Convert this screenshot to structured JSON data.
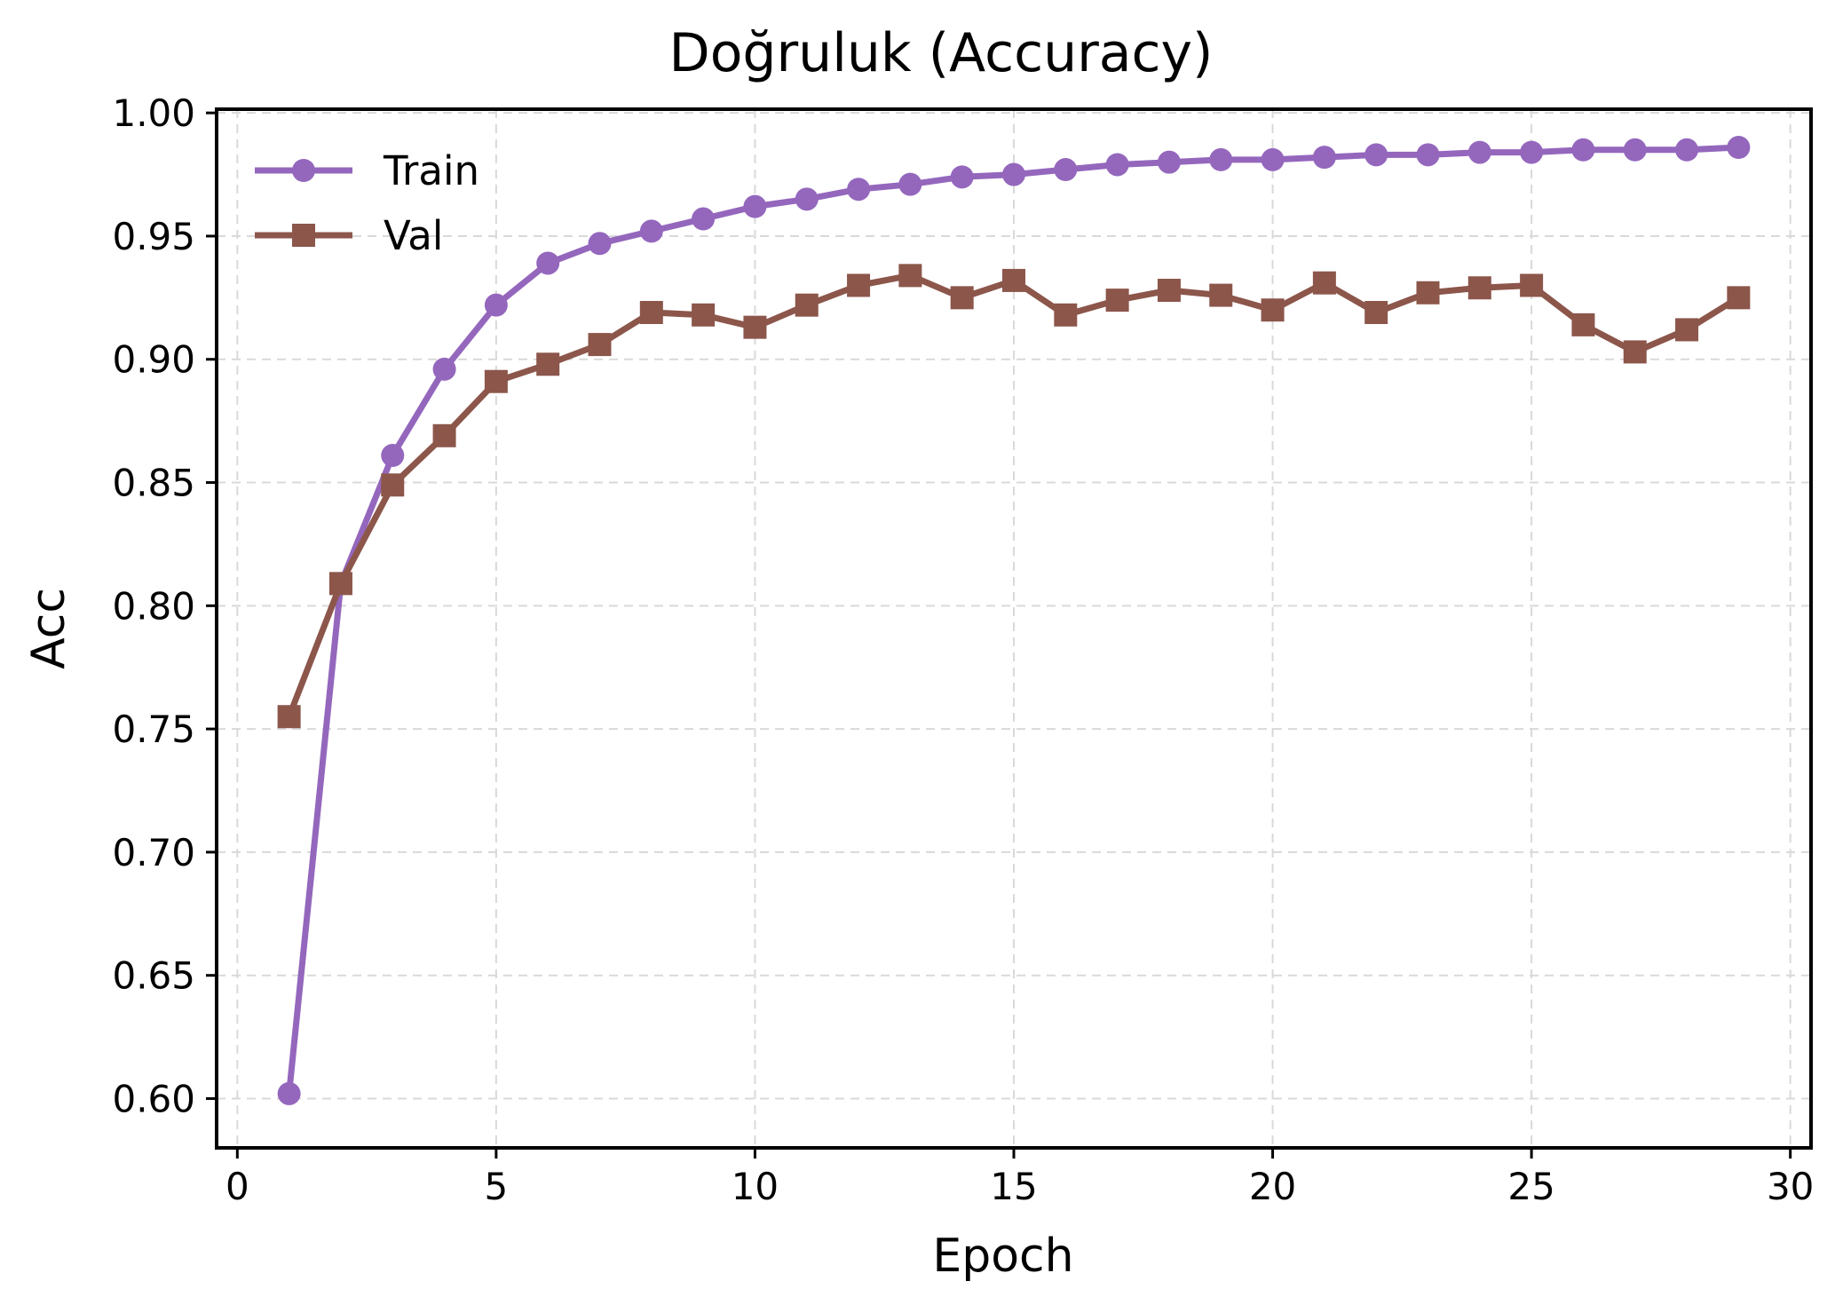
{
  "chart_data": {
    "type": "line",
    "title": "Doğruluk (Accuracy)",
    "xlabel": "Epoch",
    "ylabel": "Acc",
    "xlim": [
      -0.4,
      30.4
    ],
    "ylim": [
      0.58,
      1.0015
    ],
    "xticks": [
      0,
      5,
      10,
      15,
      20,
      25,
      30
    ],
    "xtick_labels": [
      "0",
      "5",
      "10",
      "15",
      "20",
      "25",
      "30"
    ],
    "yticks": [
      0.6,
      0.65,
      0.7,
      0.75,
      0.8,
      0.85,
      0.9,
      0.95,
      1.0
    ],
    "ytick_labels": [
      "0.60",
      "0.65",
      "0.70",
      "0.75",
      "0.80",
      "0.85",
      "0.90",
      "0.95",
      "1.00"
    ],
    "grid": true,
    "legend_position": "top-left",
    "x": [
      1,
      2,
      3,
      4,
      5,
      6,
      7,
      8,
      9,
      10,
      11,
      12,
      13,
      14,
      15,
      16,
      17,
      18,
      19,
      20,
      21,
      22,
      23,
      24,
      25,
      26,
      27,
      28,
      29
    ],
    "series": [
      {
        "name": "Train",
        "color": "#9467bd",
        "marker": "circle",
        "values": [
          0.602,
          0.809,
          0.861,
          0.896,
          0.922,
          0.939,
          0.947,
          0.952,
          0.957,
          0.962,
          0.965,
          0.969,
          0.971,
          0.974,
          0.975,
          0.977,
          0.979,
          0.98,
          0.981,
          0.981,
          0.982,
          0.983,
          0.983,
          0.984,
          0.984,
          0.985,
          0.985,
          0.985,
          0.986
        ]
      },
      {
        "name": "Val",
        "color": "#8c564b",
        "marker": "square",
        "values": [
          0.755,
          0.809,
          0.849,
          0.869,
          0.891,
          0.898,
          0.906,
          0.919,
          0.918,
          0.913,
          0.922,
          0.93,
          0.934,
          0.925,
          0.932,
          0.918,
          0.924,
          0.928,
          0.926,
          0.92,
          0.931,
          0.919,
          0.927,
          0.929,
          0.93,
          0.914,
          0.903,
          0.912,
          0.925
        ]
      }
    ]
  }
}
